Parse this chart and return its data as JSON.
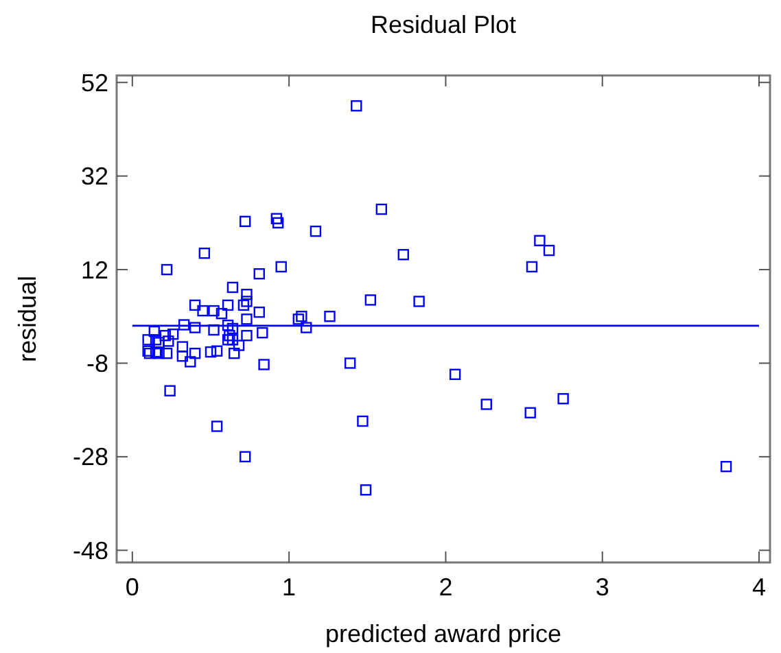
{
  "chart_data": {
    "type": "scatter",
    "title": "Residual Plot",
    "xlabel": "predicted award price",
    "ylabel": "residual",
    "xlim": [
      -0.1,
      4.07
    ],
    "ylim": [
      -50.6,
      53.5
    ],
    "xticks": [
      0,
      1,
      2,
      3,
      4
    ],
    "yticks": [
      -48,
      -28,
      -8,
      12,
      32,
      52
    ],
    "marker": "square",
    "grid": false,
    "ref_lines": [
      {
        "axis": "y",
        "value": 0,
        "color": "#0000ff"
      }
    ],
    "series": [
      {
        "color": "#0000ff",
        "x": [
          1.43,
          1.59,
          2.6,
          2.66,
          1.73,
          2.55,
          1.52,
          1.83,
          1.26,
          1.39,
          2.06,
          2.26,
          2.54,
          2.75,
          1.47,
          3.79,
          1.49,
          0.54,
          0.72,
          0.72,
          0.92,
          0.93,
          1.17,
          0.46,
          0.22,
          0.95,
          0.81,
          0.64,
          0.73,
          0.73,
          0.71,
          0.4,
          0.45,
          0.52,
          0.61,
          0.57,
          0.81,
          0.73,
          1.06,
          1.08,
          0.33,
          0.4,
          0.52,
          0.61,
          0.64,
          1.11,
          0.14,
          0.26,
          0.21,
          0.15,
          0.1,
          0.17,
          0.23,
          0.62,
          0.61,
          0.73,
          0.83,
          0.64,
          0.68,
          0.32,
          0.1,
          0.11,
          0.15,
          0.17,
          0.22,
          0.32,
          0.4,
          0.37,
          0.5,
          0.54,
          0.65,
          0.84,
          0.24
        ],
        "values": [
          47.0,
          24.9,
          18.2,
          16.1,
          15.2,
          12.6,
          5.5,
          5.2,
          2.0,
          -8.0,
          -10.4,
          -16.8,
          -18.6,
          -15.6,
          -20.4,
          -30.1,
          -35.1,
          -21.5,
          -28.0,
          22.3,
          22.9,
          22.0,
          20.2,
          15.5,
          12.0,
          12.6,
          11.1,
          8.2,
          6.7,
          5.2,
          4.4,
          4.4,
          3.2,
          3.2,
          4.4,
          2.6,
          2.9,
          1.4,
          1.4,
          2.0,
          0.2,
          -0.4,
          -0.9,
          0.1,
          -0.6,
          -0.4,
          -1.2,
          -1.8,
          -2.1,
          -3.0,
          -3.0,
          -3.6,
          -3.3,
          -2.1,
          -3.0,
          -2.1,
          -1.5,
          -3.0,
          -4.2,
          -4.5,
          -5.4,
          -5.9,
          -5.6,
          -5.9,
          -5.9,
          -6.5,
          -5.9,
          -7.7,
          -5.6,
          -5.4,
          -5.9,
          -8.3,
          -13.9
        ]
      }
    ]
  }
}
